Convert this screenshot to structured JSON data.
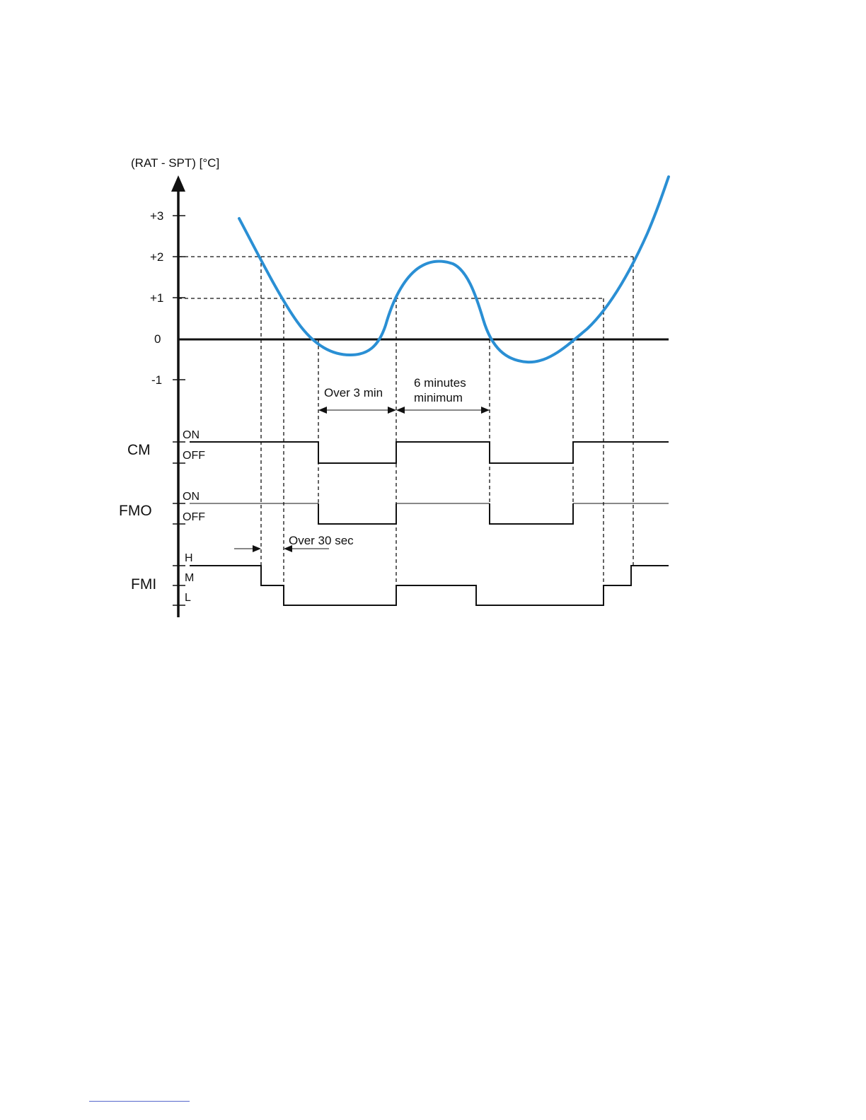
{
  "diagram": {
    "y_axis_title": "(RAT - SPT) [°C]",
    "y_ticks": [
      "+3",
      "+2",
      "+1",
      "0",
      "-1"
    ],
    "signals": [
      {
        "name": "CM",
        "states": [
          "ON",
          "OFF"
        ]
      },
      {
        "name": "FMO",
        "states": [
          "ON",
          "OFF"
        ]
      },
      {
        "name": "FMI",
        "states": [
          "H",
          "M",
          "L"
        ]
      }
    ],
    "annotations": {
      "over_3_min": "Over 3 min",
      "six_minutes": "6 minutes",
      "minimum": "minimum",
      "over_30_sec": "Over 30 sec"
    },
    "curve_color": "#2a8fd4"
  }
}
